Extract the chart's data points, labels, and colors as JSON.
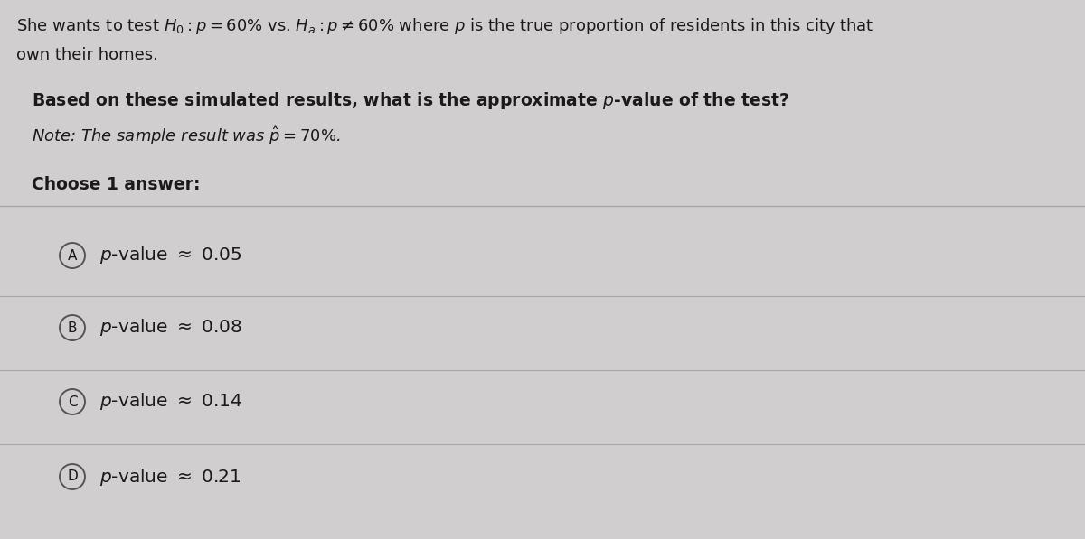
{
  "bg_color": "#d0cece",
  "top_text_line1": "She wants to test $H_0 : p = 60\\%$ vs. $H_a : p \\neq 60\\%$ where $p$ is the true proportion of residents in this city that",
  "top_text_line2": "own their homes.",
  "question_text": "Based on these simulated results, what is the approximate $p$-value of the test?",
  "note_text": "Note: The sample result was $\\hat{p} = 70\\%$.",
  "choose_text": "Choose 1 answer:",
  "options": [
    {
      "label": "A",
      "text": "$p$-value $\\approx$ 0.05"
    },
    {
      "label": "B",
      "text": "$p$-value $\\approx$ 0.08"
    },
    {
      "label": "C",
      "text": "$p$-value $\\approx$ 0.14"
    },
    {
      "label": "D",
      "text": "$p$-value $\\approx$ 0.21"
    }
  ],
  "divider_color": "#a8a8a8",
  "circle_edge_color": "#555555",
  "text_color": "#1a1a1a",
  "font_size_top": 13.0,
  "font_size_question": 13.5,
  "font_size_note": 13.0,
  "font_size_choose": 13.5,
  "font_size_options": 14.5,
  "font_size_circle_label": 11
}
